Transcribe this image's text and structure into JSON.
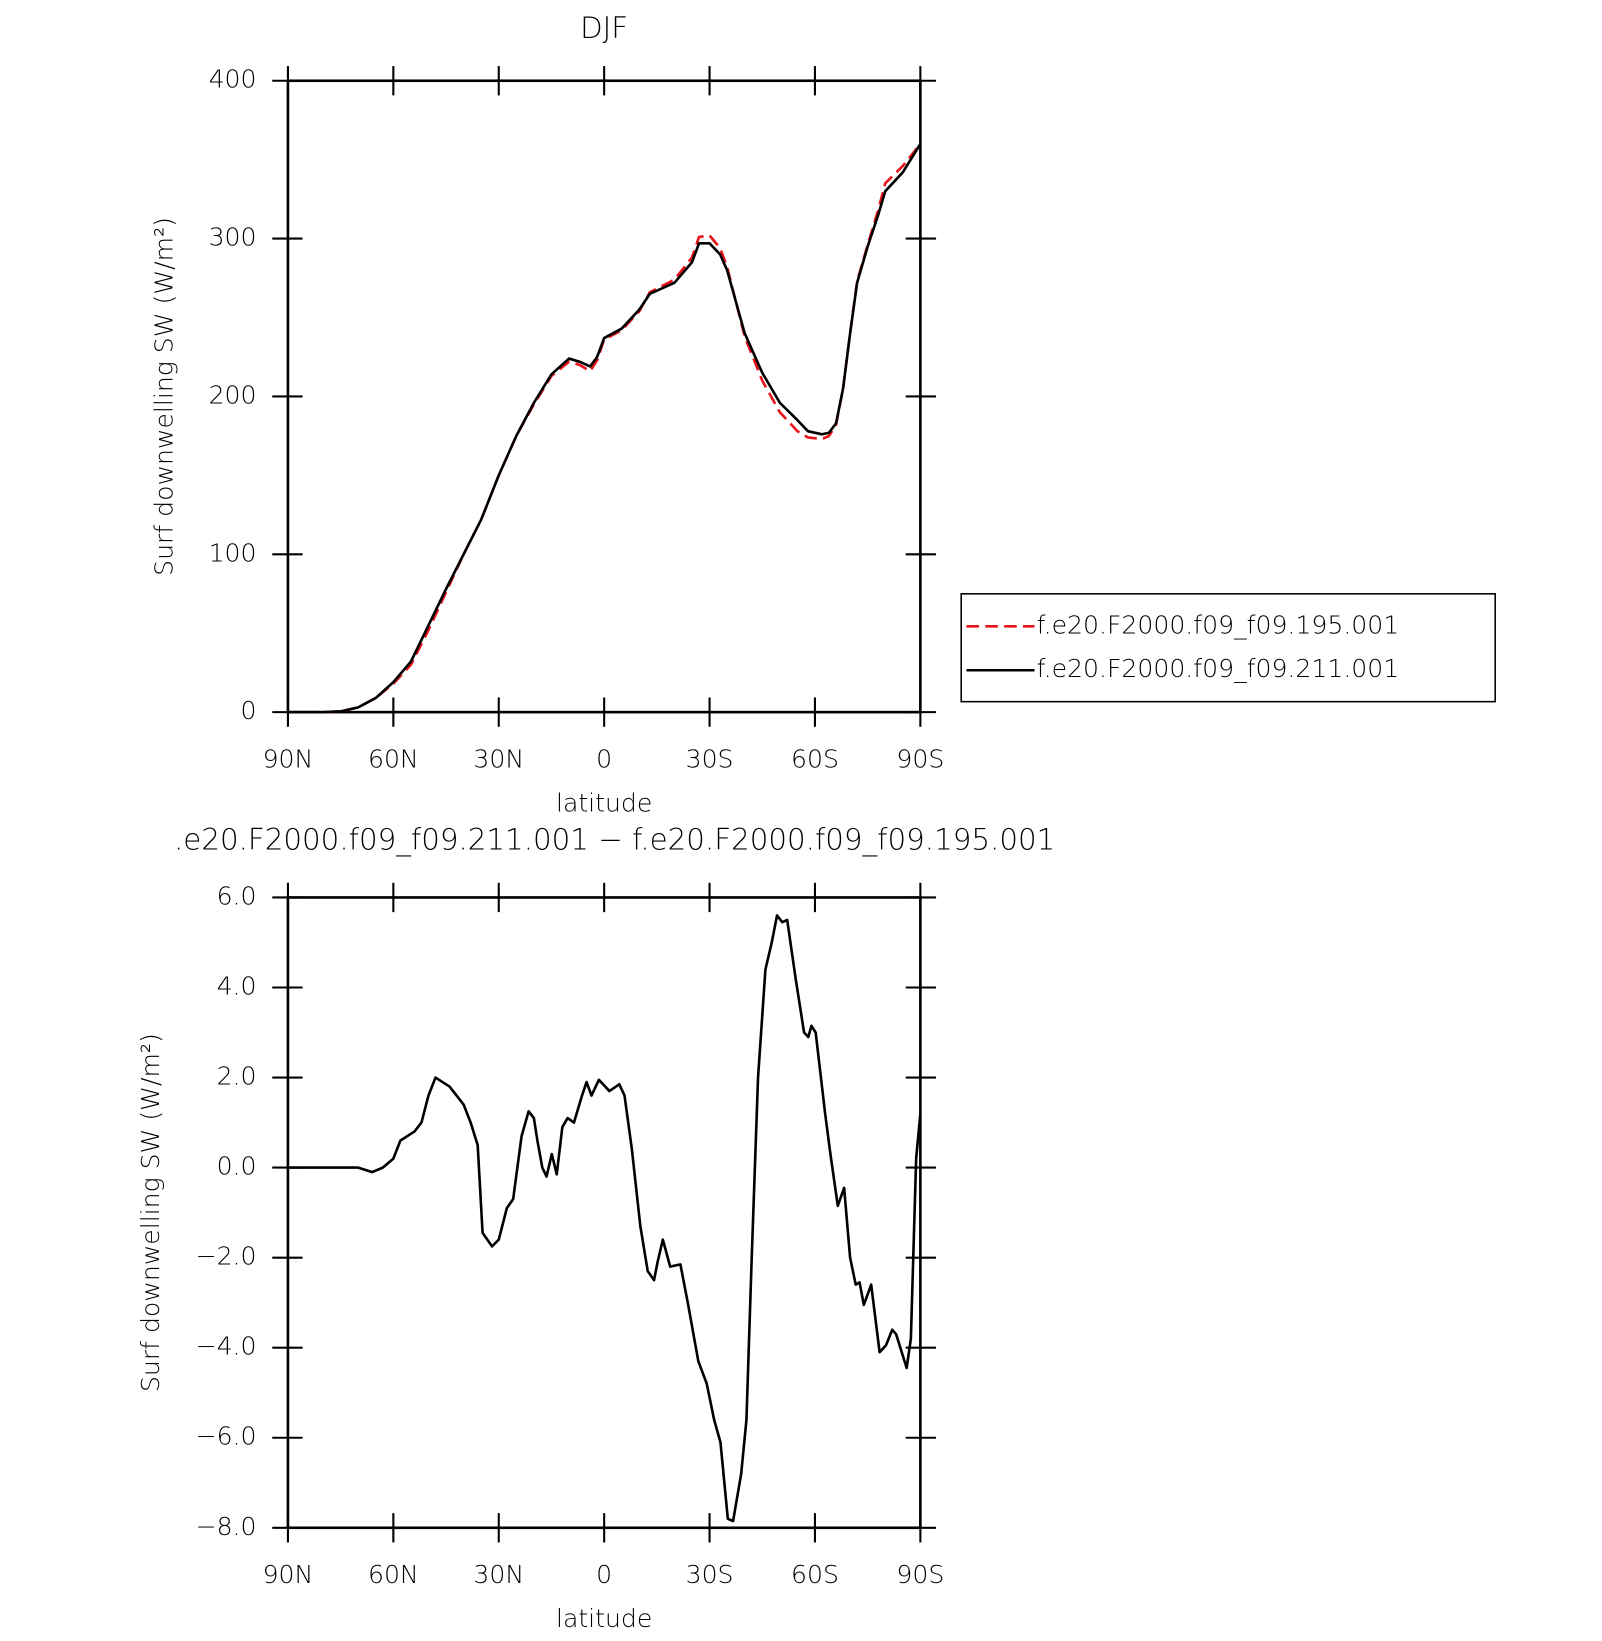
{
  "chart_data": [
    {
      "type": "line",
      "title": "DJF",
      "xlabel": "latitude",
      "ylabel": "Surf downwelling SW (W/m²)",
      "x": [
        90,
        80,
        75,
        70,
        65,
        60,
        55,
        50,
        45,
        40,
        35,
        30,
        25,
        20,
        15,
        10,
        7,
        4,
        2,
        0,
        -5,
        -10,
        -13,
        -20,
        -25,
        -27,
        -30,
        -33,
        -35,
        -40,
        -45,
        -50,
        -55,
        -58,
        -62,
        -64,
        -66,
        -68,
        -70,
        -72,
        -75,
        -78,
        -80,
        -85,
        -90
      ],
      "series": [
        {
          "name": "f.e20.F2000.f09_f09.195.001",
          "color": "#e8141a",
          "dash": true,
          "values": [
            0,
            0,
            0.5,
            3,
            9,
            18,
            30,
            52,
            76,
            100,
            122,
            150,
            175,
            195,
            213,
            222,
            220,
            216,
            223,
            236,
            242,
            254,
            266,
            274,
            288,
            301,
            302,
            294,
            282,
            238,
            210,
            190,
            178,
            174,
            173,
            175,
            182,
            205,
            240,
            273,
            296,
            318,
            335,
            346,
            360
          ]
        },
        {
          "name": "f.e20.F2000.f09_f09.211.001",
          "color": "#000000",
          "dash": false,
          "values": [
            0,
            0,
            0.5,
            3,
            9,
            19,
            32,
            55,
            78,
            100,
            122,
            150,
            175,
            196,
            214,
            224,
            222,
            219,
            225,
            237,
            243,
            255,
            265,
            272,
            285,
            297,
            297,
            290,
            280,
            240,
            215,
            196,
            185,
            178,
            176,
            177,
            183,
            205,
            240,
            272,
            295,
            315,
            330,
            342,
            360
          ]
        }
      ],
      "xlim": [
        90,
        -90
      ],
      "xticks": [
        {
          "value": 90,
          "label": "90N"
        },
        {
          "value": 60,
          "label": "60N"
        },
        {
          "value": 30,
          "label": "30N"
        },
        0,
        {
          "value": -30,
          "label": "30S"
        },
        {
          "value": -60,
          "label": "60S"
        },
        {
          "value": -90,
          "label": "90S"
        }
      ],
      "ylim": [
        0,
        400
      ],
      "yticks": [
        0,
        100,
        200,
        300,
        400
      ],
      "legend": "right"
    },
    {
      "type": "line",
      "title": ".e20.F2000.f09_f09.211.001 − f.e20.F2000.f09_f09.195.001",
      "xlabel": "latitude",
      "ylabel": "Surf downwelling SW (W/m²)",
      "x": [
        90,
        70,
        66,
        63,
        60,
        58,
        56,
        54,
        52,
        50,
        48,
        46,
        44,
        42,
        40,
        38,
        36,
        34.6,
        31.9,
        30,
        27.7,
        25.9,
        23.5,
        21.5,
        20,
        19,
        17.6,
        16.4,
        14.9,
        13.5,
        11.9,
        10.4,
        8.6,
        6.3,
        5,
        3.6,
        1.5,
        -1.5,
        -4.3,
        -5.8,
        -7.9,
        -10.3,
        -12.4,
        -14.2,
        -15.2,
        -16.7,
        -18.8,
        -21.7,
        -23.8,
        -26.8,
        -29.2,
        -31.3,
        -33.1,
        -35.2,
        -36.7,
        -39,
        -40.5,
        -42,
        -43.8,
        -45.9,
        -47.7,
        -49.2,
        -50.7,
        -52.1,
        -54.5,
        -56.9,
        -58.1,
        -59,
        -60.2,
        -62.9,
        -64.4,
        -66.5,
        -68.3,
        -70,
        -71.6,
        -72.7,
        -73.9,
        -76,
        -78.4,
        -80.2,
        -82,
        -83.1,
        -86.1,
        -87.3,
        -88.8,
        -90
      ],
      "series": [
        {
          "name": null,
          "color": "#000000",
          "dash": false,
          "values": [
            0,
            0,
            -0.1,
            0,
            0.2,
            0.6,
            0.7,
            0.8,
            1.0,
            1.6,
            2.0,
            1.9,
            1.8,
            1.6,
            1.4,
            1.0,
            0.5,
            -1.45,
            -1.75,
            -1.6,
            -0.9,
            -0.7,
            0.7,
            1.25,
            1.1,
            0.6,
            0.0,
            -0.2,
            0.3,
            -0.15,
            0.9,
            1.1,
            1.0,
            1.6,
            1.9,
            1.6,
            1.95,
            1.7,
            1.85,
            1.6,
            0.4,
            -1.3,
            -2.3,
            -2.5,
            -2.1,
            -1.6,
            -2.2,
            -2.15,
            -3.0,
            -4.3,
            -4.8,
            -5.6,
            -6.1,
            -7.8,
            -7.85,
            -6.8,
            -5.6,
            -2.0,
            2.0,
            4.4,
            5.0,
            5.6,
            5.45,
            5.5,
            4.2,
            3.0,
            2.9,
            3.15,
            3.0,
            1.2,
            0.3,
            -0.85,
            -0.45,
            -2.0,
            -2.6,
            -2.55,
            -3.05,
            -2.6,
            -4.1,
            -3.95,
            -3.6,
            -3.7,
            -4.45,
            -3.8,
            0.2,
            1.2
          ]
        }
      ],
      "xlim": [
        90,
        -90
      ],
      "xticks": [
        {
          "value": 90,
          "label": "90N"
        },
        {
          "value": 60,
          "label": "60N"
        },
        {
          "value": 30,
          "label": "30N"
        },
        0,
        {
          "value": -30,
          "label": "30S"
        },
        {
          "value": -60,
          "label": "60S"
        },
        {
          "value": -90,
          "label": "90S"
        }
      ],
      "ylim": [
        -8,
        6
      ],
      "yticks": [
        {
          "value": -8,
          "label": "−8.0"
        },
        {
          "value": -6,
          "label": "−6.0"
        },
        {
          "value": -4,
          "label": "−4.0"
        },
        {
          "value": -2,
          "label": "−2.0"
        },
        {
          "value": 0,
          "label": "0.0"
        },
        {
          "value": 2,
          "label": "2.0"
        },
        {
          "value": 4,
          "label": "4.0"
        },
        {
          "value": 6,
          "label": "6.0"
        }
      ]
    }
  ]
}
